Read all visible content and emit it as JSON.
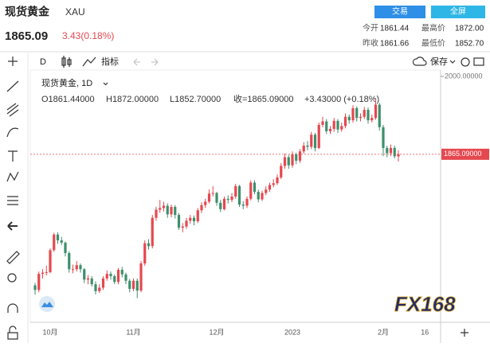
{
  "header": {
    "name": "现货黄金",
    "symbol": "XAU",
    "price": "1865.09",
    "change": "3.43(0.18%)",
    "buttons": [
      "交易",
      "全屏"
    ],
    "stats": [
      [
        "今开",
        "1861.44",
        "最高价",
        "1872.00"
      ],
      [
        "昨收",
        "1861.66",
        "最低价",
        "1852.70"
      ]
    ]
  },
  "toolbar": {
    "interval": "D",
    "indicators": "指标",
    "save": "保存"
  },
  "watermark": "FX168",
  "chart_data": {
    "type": "candlestick",
    "title": "现货黄金, 1D",
    "legend": [
      "O1861.44000",
      "H1872.00000",
      "L1852.70000",
      "收=1865.09000",
      "+3.43000 (+0.18%)"
    ],
    "categories": [
      null,
      null,
      null,
      null,
      "10月",
      null,
      null,
      null,
      null,
      null,
      null,
      null,
      null,
      null,
      null,
      null,
      null,
      null,
      null,
      null,
      null,
      null,
      null,
      null,
      null,
      null,
      "11月",
      null,
      null,
      null,
      null,
      null,
      null,
      null,
      null,
      null,
      null,
      null,
      null,
      null,
      null,
      null,
      null,
      null,
      null,
      null,
      null,
      null,
      "12月",
      null,
      null,
      null,
      null,
      null,
      null,
      null,
      null,
      null,
      null,
      null,
      null,
      null,
      null,
      null,
      null,
      null,
      null,
      null,
      "2023",
      null,
      null,
      null,
      null,
      null,
      null,
      null,
      null,
      null,
      null,
      null,
      null,
      null,
      null,
      null,
      null,
      null,
      null,
      null,
      null,
      null,
      null,
      null,
      "2月",
      null,
      null,
      null,
      null,
      null,
      null,
      null,
      null,
      null,
      null,
      "16"
    ],
    "open": [
      1638,
      1630,
      1658,
      1660,
      1661,
      1699,
      1726,
      1716,
      1712,
      1694,
      1666,
      1666,
      1673,
      1666,
      1648,
      1650,
      1640,
      1628,
      1634,
      1650,
      1658,
      1654,
      1644,
      1665,
      1657,
      1646,
      1632,
      1646,
      1629,
      1676,
      1711,
      1706,
      1755,
      1769,
      1772,
      1776,
      1761,
      1774,
      1760,
      1738,
      1740,
      1750,
      1755,
      1749,
      1768,
      1777,
      1783,
      1797,
      1798,
      1781,
      1770,
      1788,
      1786,
      1792,
      1810,
      1778,
      1776,
      1788,
      1816,
      1800,
      1787,
      1798,
      1804,
      1812,
      1815,
      1825,
      1845,
      1860,
      1846,
      1865,
      1854,
      1870,
      1880,
      1878,
      1899,
      1876,
      1916,
      1922,
      1905,
      1909,
      1923,
      1908,
      1914,
      1930,
      1924,
      1945,
      1928,
      1930,
      1942,
      1924,
      1928,
      1951,
      1912,
      1876,
      1867,
      1876,
      1861.44,
      null,
      null,
      null,
      null,
      null,
      null,
      null
    ],
    "high": [
      1642,
      1662,
      1666,
      1672,
      1702,
      1729,
      1730,
      1722,
      1714,
      1697,
      1674,
      1680,
      1676,
      1668,
      1656,
      1654,
      1645,
      1640,
      1654,
      1664,
      1662,
      1657,
      1668,
      1670,
      1660,
      1649,
      1650,
      1650,
      1680,
      1716,
      1718,
      1760,
      1774,
      1786,
      1783,
      1780,
      1778,
      1777,
      1763,
      1746,
      1755,
      1760,
      1759,
      1772,
      1782,
      1788,
      1804,
      1810,
      1800,
      1786,
      1792,
      1794,
      1798,
      1814,
      1812,
      1784,
      1792,
      1820,
      1820,
      1804,
      1802,
      1810,
      1816,
      1822,
      1830,
      1850,
      1866,
      1864,
      1870,
      1868,
      1874,
      1886,
      1888,
      1904,
      1902,
      1920,
      1930,
      1926,
      1914,
      1928,
      1926,
      1920,
      1936,
      1934,
      1950,
      1948,
      1936,
      1947,
      1946,
      1934,
      1960,
      1954,
      1916,
      1880,
      1882,
      1880,
      1872,
      null,
      null,
      null,
      null,
      null,
      null,
      null
    ],
    "low": [
      1622,
      1626,
      1650,
      1655,
      1659,
      1696,
      1710,
      1708,
      1688,
      1660,
      1659,
      1662,
      1660,
      1642,
      1640,
      1636,
      1622,
      1625,
      1630,
      1646,
      1648,
      1640,
      1640,
      1652,
      1640,
      1626,
      1628,
      1616,
      1626,
      1672,
      1700,
      1702,
      1750,
      1764,
      1766,
      1755,
      1756,
      1754,
      1734,
      1730,
      1736,
      1745,
      1742,
      1746,
      1763,
      1772,
      1780,
      1792,
      1776,
      1765,
      1768,
      1780,
      1782,
      1788,
      1774,
      1770,
      1772,
      1785,
      1796,
      1782,
      1784,
      1794,
      1800,
      1808,
      1812,
      1822,
      1840,
      1840,
      1842,
      1848,
      1850,
      1866,
      1872,
      1874,
      1870,
      1874,
      1912,
      1900,
      1900,
      1904,
      1902,
      1904,
      1910,
      1918,
      1920,
      1922,
      1922,
      1926,
      1918,
      1920,
      1925,
      1906,
      1862,
      1860,
      1862,
      1858,
      1852.7,
      null,
      null,
      null,
      null,
      null,
      null,
      null
    ],
    "close": [
      1630,
      1658,
      1660,
      1661,
      1699,
      1726,
      1716,
      1712,
      1694,
      1666,
      1666,
      1673,
      1666,
      1648,
      1650,
      1640,
      1628,
      1634,
      1650,
      1658,
      1654,
      1644,
      1665,
      1657,
      1646,
      1632,
      1646,
      1629,
      1676,
      1711,
      1706,
      1755,
      1769,
      1772,
      1776,
      1761,
      1774,
      1760,
      1738,
      1740,
      1750,
      1755,
      1749,
      1768,
      1777,
      1783,
      1797,
      1798,
      1781,
      1770,
      1788,
      1786,
      1792,
      1810,
      1778,
      1776,
      1788,
      1816,
      1800,
      1787,
      1798,
      1804,
      1812,
      1815,
      1825,
      1845,
      1860,
      1846,
      1865,
      1854,
      1870,
      1880,
      1878,
      1899,
      1876,
      1916,
      1922,
      1905,
      1909,
      1923,
      1908,
      1914,
      1930,
      1924,
      1945,
      1928,
      1930,
      1942,
      1924,
      1928,
      1951,
      1912,
      1876,
      1867,
      1876,
      1861.66,
      1865.09,
      null,
      null,
      null,
      null,
      null,
      null,
      null
    ],
    "up_color": "#e5484f",
    "down_color": "#3d8f6c",
    "ylim": [
      1574,
      2011
    ],
    "yticks": [
      {
        "value": 2000,
        "label": "2000.00000"
      }
    ],
    "last_price": {
      "value": 1865.09,
      "label": "1865.09000"
    },
    "grid": false
  }
}
